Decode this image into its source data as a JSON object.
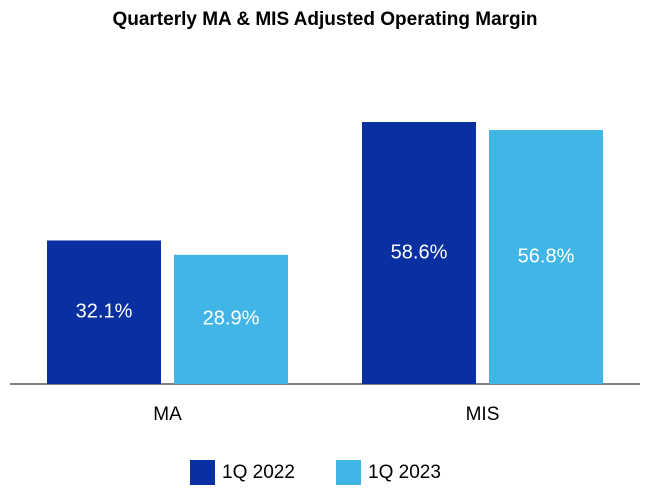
{
  "chart_data": {
    "type": "bar",
    "title": "Quarterly MA & MIS Adjusted Operating Margin",
    "categories": [
      "MA",
      "MIS"
    ],
    "series": [
      {
        "name": "1Q 2022",
        "color": "#0a2fa0",
        "values": [
          32.1,
          58.6
        ],
        "value_labels": [
          "32.1%",
          "58.6%"
        ]
      },
      {
        "name": "1Q 2023",
        "color": "#41b6e6",
        "values": [
          28.9,
          56.8
        ],
        "value_labels": [
          "28.9%",
          "56.8%"
        ]
      }
    ],
    "legend": "bottom"
  }
}
